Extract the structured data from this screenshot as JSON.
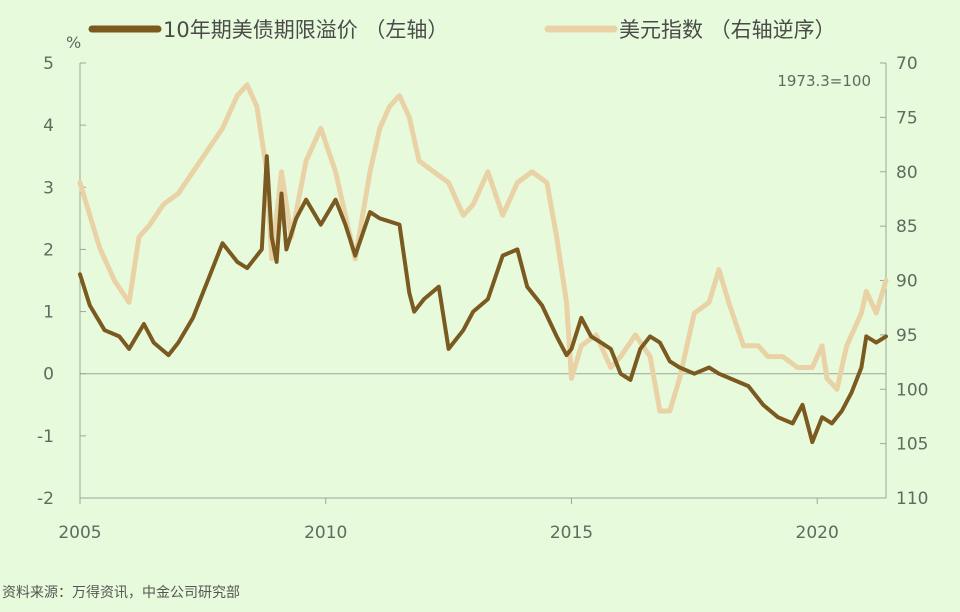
{
  "chart_data": {
    "type": "line",
    "legend": {
      "placement": "top"
    },
    "unit_left": "%",
    "note": "1973.3=100",
    "x_ticks": [
      "2005",
      "2010",
      "2015",
      "2020"
    ],
    "x_range": [
      2005,
      2021.4
    ],
    "y_left": {
      "range": [
        -2,
        5
      ],
      "ticks": [
        "5",
        "4",
        "3",
        "2",
        "1",
        "0",
        "-1",
        "-2"
      ]
    },
    "y_right": {
      "range": [
        70,
        110
      ],
      "inverted": true,
      "ticks": [
        "70",
        "75",
        "80",
        "85",
        "90",
        "95",
        "100",
        "105",
        "110"
      ]
    },
    "series": [
      {
        "name": "10年期美债期限溢价 （左轴）",
        "axis": "left",
        "color": "#7b5a22",
        "x": [
          2005.0,
          2005.2,
          2005.5,
          2005.8,
          2006.0,
          2006.3,
          2006.5,
          2006.8,
          2007.0,
          2007.3,
          2007.6,
          2007.9,
          2008.2,
          2008.4,
          2008.7,
          2008.8,
          2008.9,
          2009.0,
          2009.1,
          2009.2,
          2009.4,
          2009.6,
          2009.9,
          2010.2,
          2010.4,
          2010.6,
          2010.9,
          2011.1,
          2011.5,
          2011.7,
          2011.8,
          2012.0,
          2012.3,
          2012.5,
          2012.8,
          2013.0,
          2013.3,
          2013.6,
          2013.9,
          2014.1,
          2014.4,
          2014.7,
          2014.9,
          2015.0,
          2015.2,
          2015.4,
          2015.6,
          2015.8,
          2016.0,
          2016.2,
          2016.4,
          2016.6,
          2016.8,
          2017.0,
          2017.2,
          2017.5,
          2017.8,
          2018.0,
          2018.3,
          2018.6,
          2018.9,
          2019.2,
          2019.5,
          2019.7,
          2019.9,
          2020.1,
          2020.3,
          2020.5,
          2020.7,
          2020.9,
          2021.0,
          2021.2,
          2021.4
        ],
        "values": [
          1.6,
          1.1,
          0.7,
          0.6,
          0.4,
          0.8,
          0.5,
          0.3,
          0.5,
          0.9,
          1.5,
          2.1,
          1.8,
          1.7,
          2.0,
          3.5,
          2.2,
          1.8,
          2.9,
          2.0,
          2.5,
          2.8,
          2.4,
          2.8,
          2.4,
          1.9,
          2.6,
          2.5,
          2.4,
          1.3,
          1.0,
          1.2,
          1.4,
          0.4,
          0.7,
          1.0,
          1.2,
          1.9,
          2.0,
          1.4,
          1.1,
          0.6,
          0.3,
          0.4,
          0.9,
          0.6,
          0.5,
          0.4,
          0.0,
          -0.1,
          0.4,
          0.6,
          0.5,
          0.2,
          0.1,
          0.0,
          0.1,
          0.0,
          -0.1,
          -0.2,
          -0.5,
          -0.7,
          -0.8,
          -0.5,
          -1.1,
          -0.7,
          -0.8,
          -0.6,
          -0.3,
          0.1,
          0.6,
          0.5,
          0.6
        ]
      },
      {
        "name": "美元指数 （右轴逆序）",
        "axis": "right",
        "color": "#e9d3a6",
        "x": [
          2005.0,
          2005.2,
          2005.4,
          2005.7,
          2006.0,
          2006.2,
          2006.4,
          2006.7,
          2007.0,
          2007.3,
          2007.6,
          2007.9,
          2008.2,
          2008.4,
          2008.6,
          2008.8,
          2008.9,
          2009.0,
          2009.1,
          2009.3,
          2009.6,
          2009.9,
          2010.2,
          2010.4,
          2010.6,
          2010.9,
          2011.1,
          2011.3,
          2011.5,
          2011.7,
          2011.9,
          2012.2,
          2012.5,
          2012.8,
          2013.0,
          2013.3,
          2013.6,
          2013.9,
          2014.2,
          2014.5,
          2014.7,
          2014.9,
          2015.0,
          2015.2,
          2015.5,
          2015.8,
          2016.0,
          2016.3,
          2016.6,
          2016.8,
          2017.0,
          2017.2,
          2017.5,
          2017.8,
          2018.0,
          2018.2,
          2018.5,
          2018.8,
          2019.0,
          2019.3,
          2019.6,
          2019.9,
          2020.1,
          2020.2,
          2020.4,
          2020.6,
          2020.9,
          2021.0,
          2021.2,
          2021.4
        ],
        "values": [
          81,
          84,
          87,
          90,
          92,
          86,
          85,
          83,
          82,
          80,
          78,
          76,
          73,
          72,
          74,
          80,
          88,
          84,
          80,
          86,
          79,
          76,
          80,
          84,
          88,
          80,
          76,
          74,
          73,
          75,
          79,
          80,
          81,
          84,
          83,
          80,
          84,
          81,
          80,
          81,
          86,
          92,
          99,
          96,
          95,
          98,
          97,
          95,
          97,
          102,
          102,
          99,
          93,
          92,
          89,
          92,
          96,
          96,
          97,
          97,
          98,
          98,
          96,
          99,
          100,
          96,
          93,
          91,
          93,
          90
        ]
      }
    ]
  },
  "source": "资料来源：万得资讯，中金公司研究部"
}
